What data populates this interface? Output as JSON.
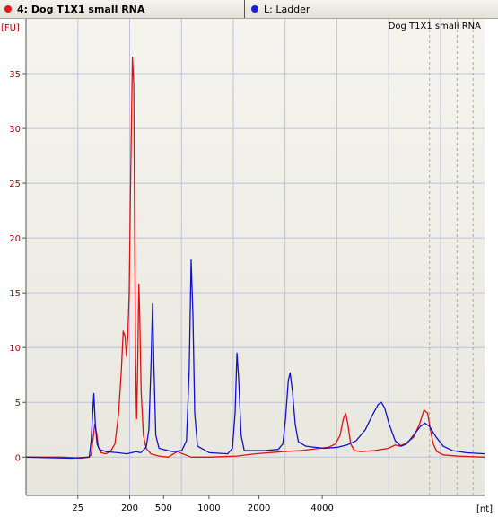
{
  "tabs": [
    {
      "label": "4: Dog T1X1 small RNA",
      "dot_color": "#e01a1a",
      "active": true
    },
    {
      "label": "L: Ladder",
      "dot_color": "#1a1ae0",
      "active": false
    }
  ],
  "chart_data": {
    "type": "line",
    "title": "Dog T1X1 small RNA",
    "ylabel": "[FU]",
    "xlabel": "[nt]",
    "ylim": [
      -3.5,
      40
    ],
    "yticks": [
      0,
      5,
      10,
      15,
      20,
      25,
      30,
      35
    ],
    "xticks": [
      "25",
      "200",
      "500",
      "1000",
      "2000",
      "4000"
    ],
    "grid": true,
    "series": [
      {
        "name": "4: Dog T1X1 small RNA",
        "color": "#e01010",
        "points": [
          [
            0.0,
            0.0
          ],
          [
            0.08,
            0.0
          ],
          [
            0.12,
            -0.1
          ],
          [
            0.136,
            0.0
          ],
          [
            0.142,
            0.2
          ],
          [
            0.146,
            1.6
          ],
          [
            0.15,
            3.0
          ],
          [
            0.154,
            2.2
          ],
          [
            0.158,
            0.9
          ],
          [
            0.164,
            0.4
          ],
          [
            0.174,
            0.3
          ],
          [
            0.184,
            0.5
          ],
          [
            0.194,
            1.2
          ],
          [
            0.202,
            4.0
          ],
          [
            0.208,
            8.0
          ],
          [
            0.212,
            11.5
          ],
          [
            0.216,
            11.0
          ],
          [
            0.219,
            9.2
          ],
          [
            0.222,
            11.0
          ],
          [
            0.225,
            15.0
          ],
          [
            0.228,
            25.0
          ],
          [
            0.232,
            36.5
          ],
          [
            0.235,
            34.0
          ],
          [
            0.237,
            20.0
          ],
          [
            0.239,
            9.0
          ],
          [
            0.241,
            3.5
          ],
          [
            0.243,
            7.0
          ],
          [
            0.246,
            15.8
          ],
          [
            0.248,
            13.0
          ],
          [
            0.251,
            6.0
          ],
          [
            0.256,
            2.0
          ],
          [
            0.262,
            0.8
          ],
          [
            0.272,
            0.3
          ],
          [
            0.29,
            0.1
          ],
          [
            0.31,
            0.0
          ],
          [
            0.33,
            0.5
          ],
          [
            0.36,
            0.0
          ],
          [
            0.4,
            0.0
          ],
          [
            0.46,
            0.1
          ],
          [
            0.5,
            0.3
          ],
          [
            0.56,
            0.5
          ],
          [
            0.6,
            0.6
          ],
          [
            0.64,
            0.8
          ],
          [
            0.66,
            0.9
          ],
          [
            0.675,
            1.2
          ],
          [
            0.685,
            2.0
          ],
          [
            0.692,
            3.5
          ],
          [
            0.697,
            4.0
          ],
          [
            0.702,
            3.0
          ],
          [
            0.708,
            1.2
          ],
          [
            0.716,
            0.6
          ],
          [
            0.73,
            0.5
          ],
          [
            0.76,
            0.6
          ],
          [
            0.79,
            0.8
          ],
          [
            0.805,
            1.1
          ],
          [
            0.815,
            1.0
          ],
          [
            0.83,
            1.3
          ],
          [
            0.845,
            1.8
          ],
          [
            0.858,
            3.0
          ],
          [
            0.868,
            4.3
          ],
          [
            0.876,
            4.0
          ],
          [
            0.882,
            2.5
          ],
          [
            0.888,
            1.2
          ],
          [
            0.896,
            0.5
          ],
          [
            0.91,
            0.2
          ],
          [
            0.94,
            0.1
          ],
          [
            1.0,
            0.0
          ]
        ]
      },
      {
        "name": "L: Ladder",
        "color": "#1010d0",
        "points": [
          [
            0.0,
            0.0
          ],
          [
            0.1,
            -0.1
          ],
          [
            0.138,
            0.0
          ],
          [
            0.142,
            1.5
          ],
          [
            0.146,
            4.5
          ],
          [
            0.148,
            5.8
          ],
          [
            0.151,
            3.0
          ],
          [
            0.155,
            1.2
          ],
          [
            0.16,
            0.7
          ],
          [
            0.175,
            0.5
          ],
          [
            0.2,
            0.4
          ],
          [
            0.22,
            0.3
          ],
          [
            0.24,
            0.5
          ],
          [
            0.25,
            0.4
          ],
          [
            0.262,
            0.9
          ],
          [
            0.268,
            2.5
          ],
          [
            0.273,
            9.0
          ],
          [
            0.276,
            14.0
          ],
          [
            0.279,
            8.0
          ],
          [
            0.283,
            2.0
          ],
          [
            0.29,
            0.8
          ],
          [
            0.32,
            0.5
          ],
          [
            0.34,
            0.6
          ],
          [
            0.35,
            1.5
          ],
          [
            0.356,
            8.0
          ],
          [
            0.36,
            18.0
          ],
          [
            0.364,
            13.0
          ],
          [
            0.368,
            4.0
          ],
          [
            0.374,
            1.0
          ],
          [
            0.4,
            0.4
          ],
          [
            0.44,
            0.3
          ],
          [
            0.45,
            0.8
          ],
          [
            0.456,
            4.0
          ],
          [
            0.46,
            9.5
          ],
          [
            0.464,
            7.0
          ],
          [
            0.469,
            2.0
          ],
          [
            0.476,
            0.6
          ],
          [
            0.52,
            0.6
          ],
          [
            0.55,
            0.7
          ],
          [
            0.56,
            1.2
          ],
          [
            0.566,
            3.5
          ],
          [
            0.572,
            7.0
          ],
          [
            0.576,
            7.7
          ],
          [
            0.581,
            6.0
          ],
          [
            0.587,
            3.0
          ],
          [
            0.594,
            1.4
          ],
          [
            0.61,
            1.0
          ],
          [
            0.65,
            0.8
          ],
          [
            0.68,
            0.9
          ],
          [
            0.7,
            1.1
          ],
          [
            0.72,
            1.5
          ],
          [
            0.74,
            2.5
          ],
          [
            0.755,
            3.8
          ],
          [
            0.768,
            4.8
          ],
          [
            0.775,
            5.0
          ],
          [
            0.782,
            4.5
          ],
          [
            0.792,
            3.0
          ],
          [
            0.805,
            1.5
          ],
          [
            0.818,
            1.0
          ],
          [
            0.83,
            1.2
          ],
          [
            0.845,
            2.0
          ],
          [
            0.86,
            2.8
          ],
          [
            0.87,
            3.1
          ],
          [
            0.88,
            2.8
          ],
          [
            0.895,
            1.8
          ],
          [
            0.91,
            1.0
          ],
          [
            0.93,
            0.6
          ],
          [
            0.96,
            0.4
          ],
          [
            1.0,
            0.3
          ]
        ]
      }
    ]
  }
}
